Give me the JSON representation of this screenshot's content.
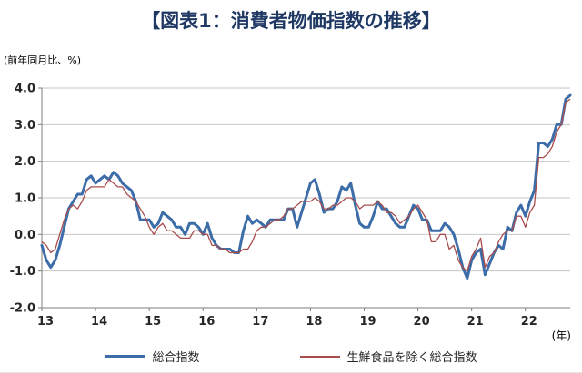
{
  "title": "【図表1：消費者物価指数の推移】",
  "y_axis_note": "(前年同月比、%)",
  "x_axis_unit": "(年)",
  "legend": [
    {
      "label": "総合指数",
      "color": "#3c6da8"
    },
    {
      "label": "生鮮食品を除く総合指数",
      "color": "#a84c4c"
    }
  ],
  "chart_data": {
    "type": "line",
    "title": "【図表1：消費者物価指数の推移】",
    "ylabel": "(前年同月比、%)",
    "xlabel": "(年)",
    "ylim": [
      -2.0,
      4.0
    ],
    "y_ticks": [
      4.0,
      3.0,
      2.0,
      1.0,
      0.0,
      -1.0,
      -2.0
    ],
    "x_tick_labels": [
      "13",
      "14",
      "15",
      "16",
      "17",
      "18",
      "19",
      "20",
      "21",
      "22"
    ],
    "x_start": "2013-01",
    "x_end": "2022-11",
    "x_frequency": "monthly",
    "grid": "horizontal",
    "legend_position": "bottom",
    "series": [
      {
        "name": "総合指数",
        "color": "#3c6da8",
        "stroke_width": 3,
        "values": [
          -0.3,
          -0.7,
          -0.9,
          -0.7,
          -0.3,
          0.2,
          0.7,
          0.9,
          1.1,
          1.1,
          1.5,
          1.6,
          1.4,
          1.5,
          1.6,
          1.5,
          1.7,
          1.6,
          1.4,
          1.3,
          1.2,
          0.9,
          0.4,
          0.4,
          0.4,
          0.2,
          0.3,
          0.6,
          0.5,
          0.4,
          0.2,
          0.2,
          0.0,
          0.3,
          0.3,
          0.2,
          0.0,
          0.3,
          -0.1,
          -0.3,
          -0.4,
          -0.4,
          -0.4,
          -0.5,
          -0.5,
          0.1,
          0.5,
          0.3,
          0.4,
          0.3,
          0.2,
          0.4,
          0.4,
          0.4,
          0.4,
          0.7,
          0.7,
          0.2,
          0.6,
          1.0,
          1.4,
          1.5,
          1.1,
          0.6,
          0.7,
          0.7,
          0.9,
          1.3,
          1.2,
          1.4,
          0.8,
          0.3,
          0.2,
          0.2,
          0.5,
          0.9,
          0.7,
          0.7,
          0.5,
          0.3,
          0.2,
          0.2,
          0.5,
          0.8,
          0.7,
          0.4,
          0.4,
          0.1,
          0.1,
          0.1,
          0.3,
          0.2,
          0.0,
          -0.4,
          -0.9,
          -1.2,
          -0.7,
          -0.5,
          -0.4,
          -1.1,
          -0.8,
          -0.5,
          -0.3,
          -0.4,
          0.2,
          0.1,
          0.6,
          0.8,
          0.5,
          0.9,
          1.2,
          2.5,
          2.5,
          2.4,
          2.6,
          3.0,
          3.0,
          3.7,
          3.8
        ]
      },
      {
        "name": "生鮮食品を除く総合指数",
        "color": "#a84c4c",
        "stroke_width": 1.3,
        "values": [
          -0.2,
          -0.3,
          -0.5,
          -0.4,
          0.0,
          0.4,
          0.7,
          0.8,
          0.7,
          0.9,
          1.2,
          1.3,
          1.3,
          1.3,
          1.3,
          1.5,
          1.4,
          1.3,
          1.3,
          1.1,
          1.0,
          0.9,
          0.7,
          0.5,
          0.2,
          0.0,
          0.2,
          0.3,
          0.1,
          0.1,
          0.0,
          -0.1,
          -0.1,
          -0.1,
          0.1,
          0.1,
          0.0,
          0.0,
          -0.3,
          -0.3,
          -0.4,
          -0.4,
          -0.5,
          -0.5,
          -0.5,
          -0.4,
          -0.4,
          -0.2,
          0.1,
          0.2,
          0.2,
          0.3,
          0.4,
          0.4,
          0.5,
          0.7,
          0.7,
          0.8,
          0.9,
          0.9,
          0.9,
          1.0,
          0.9,
          0.7,
          0.7,
          0.8,
          0.8,
          0.9,
          1.0,
          1.0,
          0.9,
          0.7,
          0.8,
          0.8,
          0.8,
          0.9,
          0.8,
          0.6,
          0.6,
          0.5,
          0.3,
          0.4,
          0.5,
          0.7,
          0.8,
          0.6,
          0.4,
          -0.2,
          -0.2,
          0.0,
          0.0,
          -0.4,
          -0.3,
          -0.7,
          -0.9,
          -1.0,
          -0.6,
          -0.4,
          -0.1,
          -0.9,
          -0.6,
          -0.5,
          -0.2,
          0.0,
          0.1,
          0.1,
          0.5,
          0.5,
          0.2,
          0.6,
          0.8,
          2.1,
          2.1,
          2.2,
          2.4,
          2.8,
          3.0,
          3.6,
          3.7
        ]
      }
    ]
  }
}
